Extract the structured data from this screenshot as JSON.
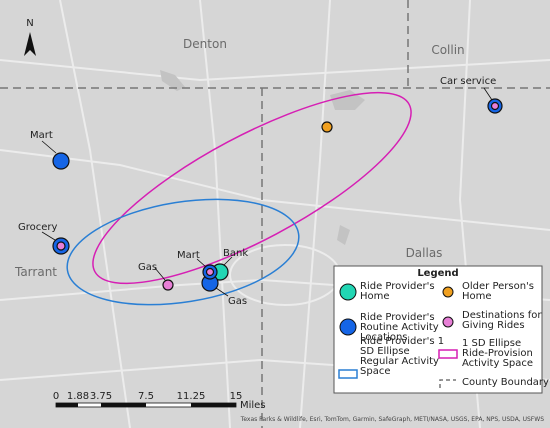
{
  "north_arrow": "N",
  "region_labels": [
    "Denton",
    "Collin",
    "Tarrant",
    "Dallas"
  ],
  "place_labels": [
    "Mart",
    "Grocery",
    "Gas",
    "Mart",
    "Bank",
    "Gas",
    "Car service"
  ],
  "legend": {
    "title": "Legend",
    "items": [
      {
        "lines": [
          "Ride Provider's",
          "Home"
        ]
      },
      {
        "lines": [
          "Ride Provider's",
          "Routine Activity",
          "Locations"
        ]
      },
      {
        "lines": [
          "Ride Provider's 1",
          "SD Ellipse",
          "Regular Activity",
          "Space"
        ]
      },
      {
        "lines": [
          "Older Person's",
          "Home"
        ]
      },
      {
        "lines": [
          "Destinations for",
          "Giving Rides"
        ]
      },
      {
        "lines": [
          "1 SD Ellipse",
          "Ride-Provision",
          "Activity Space"
        ]
      },
      {
        "lines": [
          "County Boundary"
        ]
      }
    ]
  },
  "scale_bar": {
    "ticks": [
      "0",
      "1.88",
      "3.75",
      "7.5",
      "11.25",
      "15"
    ],
    "unit": "Miles"
  },
  "attribution": "Texas Parks & Wildlife, Esri, TomTom, Garmin, SafeGraph, METI/NASA, USGS, EPA, NPS, USDA, USFWS"
}
